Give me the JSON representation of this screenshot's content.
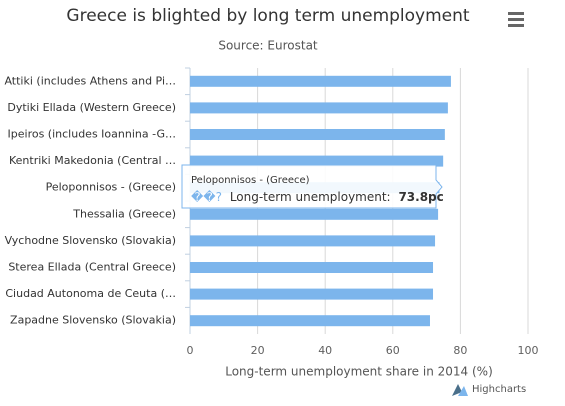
{
  "chart_data": {
    "type": "bar",
    "title": "Greece is blighted by long term unemployment",
    "subtitle": "Source: Eurostat",
    "categories": [
      "Attiki (includes Athens and Pi…",
      "Dytiki Ellada (Western Greece)",
      "Ipeiros (includes Ioannina -G…",
      "Kentriki Makedonia (Central …",
      "Peloponnisos - (Greece)",
      "Thessalia (Greece)",
      "Vychodne Slovensko (Slovakia)",
      "Sterea Ellada (Central Greece)",
      "Ciudad Autonoma de Ceuta (…",
      "Zapadne Slovensko (Slovakia)"
    ],
    "values": [
      77.2,
      76.3,
      75.4,
      74.9,
      73.8,
      73.4,
      72.5,
      71.9,
      71.9,
      71.0
    ],
    "color": "#7cb5ec",
    "xlabel": "Long-term unemployment share in 2014 (%)",
    "ylim": [
      0,
      100
    ],
    "yticks": [
      0,
      20,
      40,
      60,
      80,
      100
    ],
    "grid": true,
    "tooltip": {
      "marker": "��?",
      "text": "Long-term unemployment:",
      "value": "73.8pc"
    },
    "credits": "Highcharts"
  }
}
